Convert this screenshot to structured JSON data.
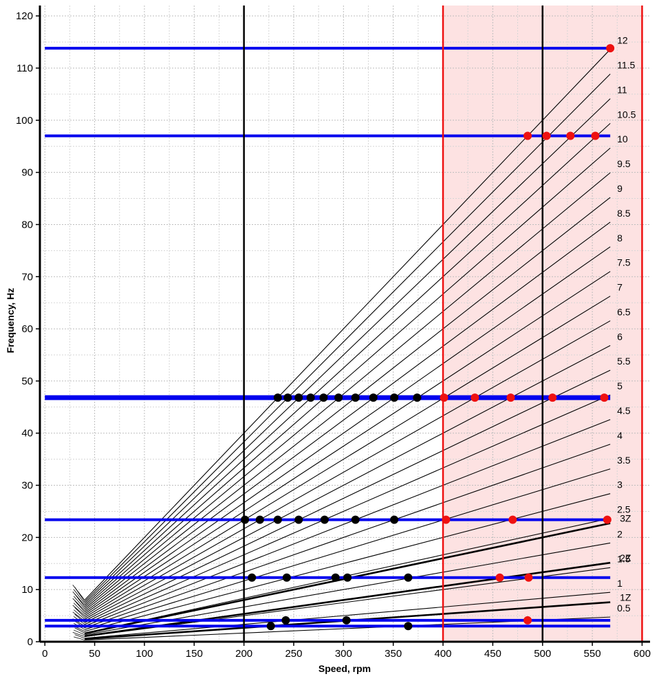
{
  "chart_data": {
    "type": "line",
    "title": "",
    "xlabel": "Speed, rpm",
    "ylabel": "Frequency, Hz",
    "xlim": [
      -5,
      608
    ],
    "ylim": [
      0,
      122
    ],
    "x_ticks": [
      0,
      50,
      100,
      150,
      200,
      250,
      300,
      350,
      400,
      450,
      500,
      550,
      600
    ],
    "y_ticks": [
      0,
      10,
      20,
      30,
      40,
      50,
      60,
      70,
      80,
      90,
      100,
      110,
      120
    ],
    "grid": true,
    "colors": {
      "order_line": "#000000",
      "frequency_line": "#0000ee",
      "operating_band_fill": "#fde2e2",
      "operating_band_edge": "#ee1111",
      "point_in_band": "#ee1111",
      "point_out_band": "#000000",
      "marker_line": "#000000"
    },
    "operating_band": [
      400,
      600
    ],
    "vertical_markers": [
      200,
      500
    ],
    "orders": [
      {
        "label": "0.5",
        "x_start": 40,
        "x_end": 568
      },
      {
        "label": "1",
        "x_start": 40,
        "x_end": 568
      },
      {
        "label": "1.5",
        "x_start": 40,
        "x_end": 568
      },
      {
        "label": "2",
        "x_start": 40,
        "x_end": 568
      },
      {
        "label": "2.5",
        "x_start": 40,
        "x_end": 568
      },
      {
        "label": "3",
        "x_start": 40,
        "x_end": 568
      },
      {
        "label": "3.5",
        "x_start": 40,
        "x_end": 568
      },
      {
        "label": "4",
        "x_start": 40,
        "x_end": 568
      },
      {
        "label": "4.5",
        "x_start": 40,
        "x_end": 568
      },
      {
        "label": "5",
        "x_start": 40,
        "x_end": 568
      },
      {
        "label": "5.5",
        "x_start": 40,
        "x_end": 568
      },
      {
        "label": "6",
        "x_start": 40,
        "x_end": 568
      },
      {
        "label": "6.5",
        "x_start": 40,
        "x_end": 568
      },
      {
        "label": "7",
        "x_start": 40,
        "x_end": 568
      },
      {
        "label": "7.5",
        "x_start": 40,
        "x_end": 568
      },
      {
        "label": "8",
        "x_start": 40,
        "x_end": 568
      },
      {
        "label": "8.5",
        "x_start": 40,
        "x_end": 568
      },
      {
        "label": "9",
        "x_start": 40,
        "x_end": 568
      },
      {
        "label": "9.5",
        "x_start": 40,
        "x_end": 568
      },
      {
        "label": "10",
        "x_start": 40,
        "x_end": 568
      },
      {
        "label": "10.5",
        "x_start": 40,
        "x_end": 568
      },
      {
        "label": "11",
        "x_start": 40,
        "x_end": 568
      },
      {
        "label": "11.5",
        "x_start": 40,
        "x_end": 568
      },
      {
        "label": "12",
        "x_start": 40,
        "x_end": 568
      },
      {
        "label": "1Z",
        "x_start": 40,
        "x_end": 568
      },
      {
        "label": "2Z",
        "x_start": 40,
        "x_end": 568
      },
      {
        "label": "3Z",
        "x_start": 40,
        "x_end": 568
      }
    ],
    "frequency_lines": [
      {
        "y": 3.0,
        "x_start": 0,
        "x_end": 568
      },
      {
        "y": 4.1,
        "x_start": 0,
        "x_end": 568
      },
      {
        "y": 12.3,
        "x_start": 0,
        "x_end": 568
      },
      {
        "y": 23.4,
        "x_start": 0,
        "x_end": 568
      },
      {
        "y": 46.8,
        "x_start": 0,
        "x_end": 568
      },
      {
        "y": 97,
        "x_start": 0,
        "x_end": 568
      },
      {
        "y": 113.8,
        "x_start": 0,
        "x_end": 568
      }
    ],
    "intersections": [
      {
        "x": 568,
        "y": 113.8
      },
      {
        "x": 485,
        "y": 97
      },
      {
        "x": 504,
        "y": 97
      },
      {
        "x": 528,
        "y": 97
      },
      {
        "x": 553,
        "y": 97
      },
      {
        "x": 234,
        "y": 46.8
      },
      {
        "x": 244,
        "y": 46.8
      },
      {
        "x": 255,
        "y": 46.8
      },
      {
        "x": 267,
        "y": 46.8
      },
      {
        "x": 280,
        "y": 46.8
      },
      {
        "x": 295,
        "y": 46.8
      },
      {
        "x": 312,
        "y": 46.8
      },
      {
        "x": 330,
        "y": 46.8
      },
      {
        "x": 351,
        "y": 46.8
      },
      {
        "x": 374,
        "y": 46.8
      },
      {
        "x": 401,
        "y": 46.8
      },
      {
        "x": 432,
        "y": 46.8
      },
      {
        "x": 468,
        "y": 46.8
      },
      {
        "x": 510,
        "y": 46.8
      },
      {
        "x": 562,
        "y": 46.8
      },
      {
        "x": 201,
        "y": 23.4
      },
      {
        "x": 216,
        "y": 23.4
      },
      {
        "x": 234,
        "y": 23.4
      },
      {
        "x": 255,
        "y": 23.4
      },
      {
        "x": 281,
        "y": 23.4
      },
      {
        "x": 312,
        "y": 23.4
      },
      {
        "x": 351,
        "y": 23.4
      },
      {
        "x": 403,
        "y": 23.4
      },
      {
        "x": 470,
        "y": 23.4
      },
      {
        "x": 565,
        "y": 23.4
      },
      {
        "x": 208,
        "y": 12.3
      },
      {
        "x": 243,
        "y": 12.3
      },
      {
        "x": 292,
        "y": 12.3
      },
      {
        "x": 304,
        "y": 12.3
      },
      {
        "x": 365,
        "y": 12.3
      },
      {
        "x": 457,
        "y": 12.3
      },
      {
        "x": 486,
        "y": 12.3
      },
      {
        "x": 242,
        "y": 4.1
      },
      {
        "x": 303,
        "y": 4.1
      },
      {
        "x": 485,
        "y": 4.1
      },
      {
        "x": 227,
        "y": 3.0
      },
      {
        "x": 365,
        "y": 3.0
      }
    ]
  }
}
